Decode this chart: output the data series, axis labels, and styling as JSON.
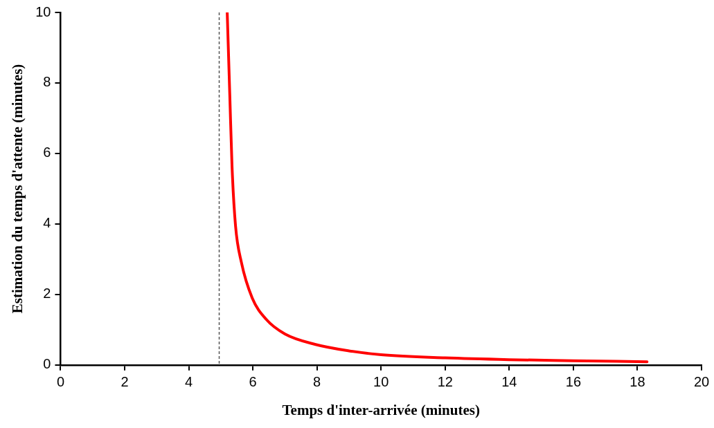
{
  "chart_data": {
    "type": "line",
    "xlabel": "Temps d'inter-arrivée (minutes)",
    "ylabel": "Estimation du temps d'attente (minutes)",
    "series": [
      {
        "color": "#ff0000",
        "x": [
          5.2,
          5.28,
          5.35,
          5.46,
          5.64,
          5.98,
          6.42,
          7.0,
          7.96,
          9,
          10,
          12,
          14,
          16,
          18.3
        ],
        "values": [
          10,
          7.67,
          5.64,
          3.94,
          2.92,
          1.9,
          1.29,
          0.88,
          0.58,
          0.4,
          0.29,
          0.2,
          0.15,
          0.12,
          0.09
        ]
      }
    ],
    "xlim": [
      0,
      20
    ],
    "xticks": [
      0,
      2,
      4,
      6,
      8,
      10,
      12,
      14,
      16,
      18,
      20
    ],
    "ylim": [
      0,
      10
    ],
    "yticks": [
      0,
      2,
      4,
      6,
      8,
      10
    ],
    "ref_lines": [
      {
        "axis": "x",
        "value": 4.95,
        "color": "#555555",
        "line_style": "dashed"
      }
    ],
    "grid": false,
    "legend": false,
    "marker": "none",
    "line_style": "solid"
  }
}
